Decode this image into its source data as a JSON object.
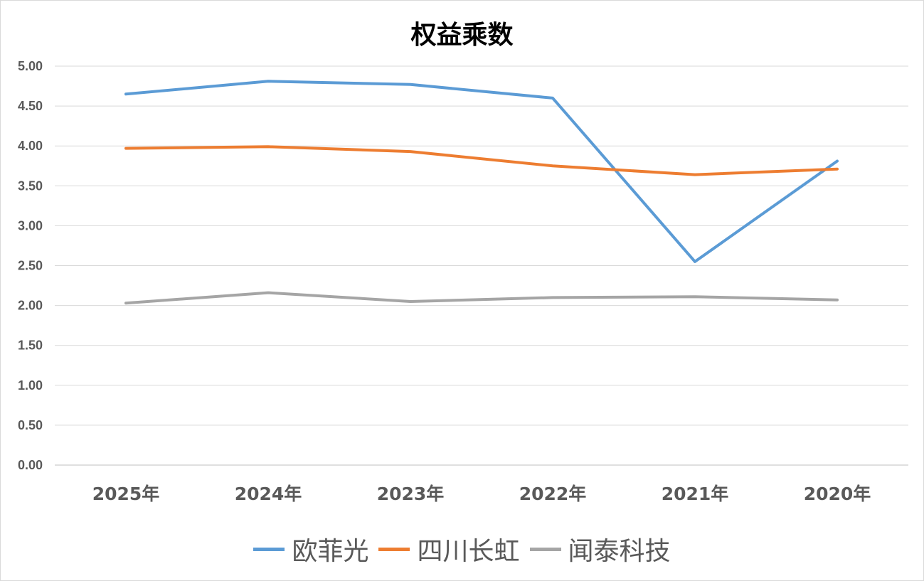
{
  "chart_data": {
    "type": "line",
    "title": "权益乘数",
    "xlabel": "",
    "ylabel": "",
    "categories": [
      "2025年",
      "2024年",
      "2023年",
      "2022年",
      "2021年",
      "2020年"
    ],
    "ylim": [
      0,
      5
    ],
    "yticks": [
      "0.00",
      "0.50",
      "1.00",
      "1.50",
      "2.00",
      "2.50",
      "3.00",
      "3.50",
      "4.00",
      "4.50",
      "5.00"
    ],
    "grid": true,
    "legend_position": "bottom",
    "series": [
      {
        "name": "欧菲光",
        "color": "#5b9bd5",
        "values": [
          4.65,
          4.81,
          4.77,
          4.6,
          2.55,
          3.81
        ]
      },
      {
        "name": "四川长虹",
        "color": "#ed7d31",
        "values": [
          3.97,
          3.99,
          3.93,
          3.75,
          3.64,
          3.71
        ]
      },
      {
        "name": "闻泰科技",
        "color": "#a5a5a5",
        "values": [
          2.03,
          2.16,
          2.05,
          2.1,
          2.11,
          2.07
        ]
      }
    ]
  }
}
